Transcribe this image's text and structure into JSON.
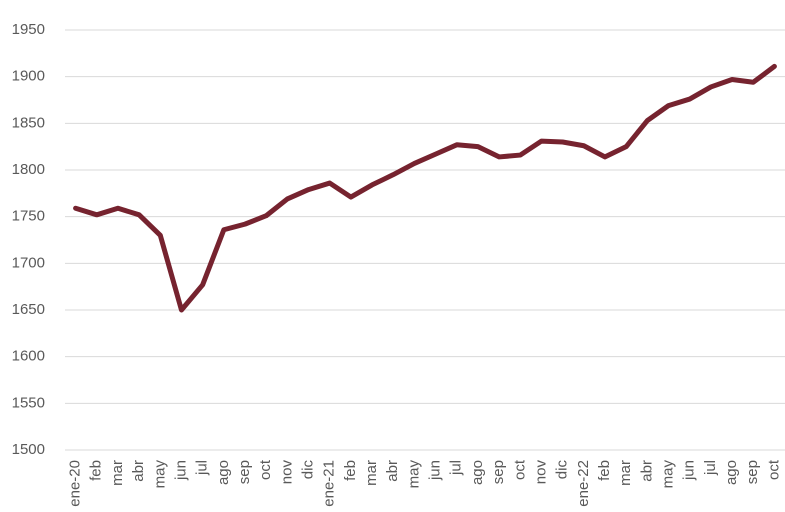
{
  "chart_data": {
    "type": "line",
    "categories": [
      "ene-20",
      "feb",
      "mar",
      "abr",
      "may",
      "jun",
      "jul",
      "ago",
      "sep",
      "oct",
      "nov",
      "dic",
      "ene-21",
      "feb",
      "mar",
      "abr",
      "may",
      "jun",
      "jul",
      "ago",
      "sep",
      "oct",
      "nov",
      "dic",
      "ene-22",
      "feb",
      "mar",
      "abr",
      "may",
      "jun",
      "jul",
      "ago",
      "sep",
      "oct"
    ],
    "values": [
      1759,
      1752,
      1759,
      1752,
      1730,
      1650,
      1677,
      1736,
      1742,
      1751,
      1769,
      1779,
      1786,
      1771,
      1784,
      1795,
      1807,
      1817,
      1827,
      1825,
      1814,
      1816,
      1831,
      1830,
      1826,
      1814,
      1825,
      1853,
      1869,
      1876,
      1889,
      1897,
      1894,
      1911
    ],
    "color": "#76232f",
    "ylim": [
      1500,
      1950
    ],
    "yticks": [
      1500,
      1550,
      1600,
      1650,
      1700,
      1750,
      1800,
      1850,
      1900,
      1950
    ],
    "grid": true
  }
}
